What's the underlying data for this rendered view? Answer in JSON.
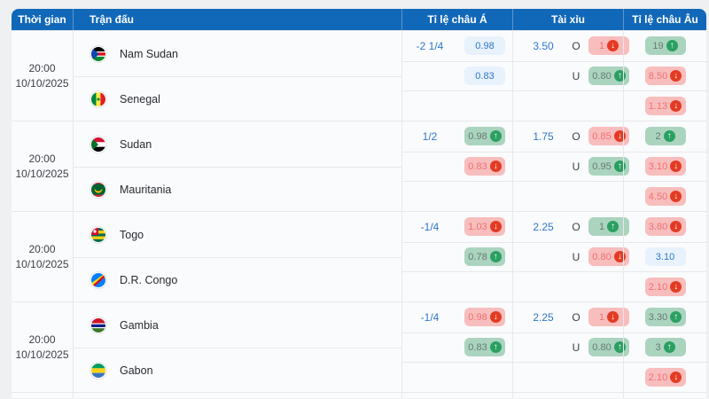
{
  "header": {
    "columns": [
      "Thời gian",
      "Trận đấu",
      "Tỉ lệ châu Á",
      "Tài xỉu",
      "Tỉ lệ châu Âu"
    ]
  },
  "colors": {
    "header_bg": "#1268b8",
    "page_bg": "#eff0f2",
    "accent_blue": "#2d77cc",
    "badge_blue_bg": "#e8f2fc",
    "badge_green_bg": "#abd4bf",
    "badge_red_bg": "#f8bdbd",
    "trend_up_circle": "#2aa061",
    "trend_down_circle": "#e33b23"
  },
  "matches": [
    {
      "time": "20:00",
      "date": "10/10/2025",
      "home": {
        "name": "Nam Sudan",
        "flag": "flag-south-sudan"
      },
      "away": {
        "name": "Senegal",
        "flag": "flag-senegal"
      },
      "asian": {
        "handicap": "-2 1/4",
        "home_odds": {
          "value": "0.98",
          "style": "blue",
          "trend": null
        },
        "away_odds": {
          "value": "0.83",
          "style": "blue",
          "trend": null
        }
      },
      "over_under": {
        "line": "3.50",
        "over_label": "O",
        "under_label": "U",
        "over": {
          "value": "1",
          "style": "red",
          "trend": "down"
        },
        "under": {
          "value": "0.80",
          "style": "green",
          "trend": "up"
        }
      },
      "european": [
        {
          "value": "19",
          "style": "green",
          "trend": "up"
        },
        {
          "value": "8.50",
          "style": "red",
          "trend": "down"
        },
        {
          "value": "1.13",
          "style": "red",
          "trend": "down"
        }
      ]
    },
    {
      "time": "20:00",
      "date": "10/10/2025",
      "home": {
        "name": "Sudan",
        "flag": "flag-sudan"
      },
      "away": {
        "name": "Mauritania",
        "flag": "flag-mauritania"
      },
      "asian": {
        "handicap": "1/2",
        "home_odds": {
          "value": "0.98",
          "style": "green",
          "trend": "up"
        },
        "away_odds": {
          "value": "0.83",
          "style": "red",
          "trend": "down"
        }
      },
      "over_under": {
        "line": "1.75",
        "over_label": "O",
        "under_label": "U",
        "over": {
          "value": "0.85",
          "style": "red",
          "trend": "down"
        },
        "under": {
          "value": "0.95",
          "style": "green",
          "trend": "up"
        }
      },
      "european": [
        {
          "value": "2",
          "style": "green",
          "trend": "up"
        },
        {
          "value": "3.10",
          "style": "red",
          "trend": "down"
        },
        {
          "value": "4.50",
          "style": "red",
          "trend": "down"
        }
      ]
    },
    {
      "time": "20:00",
      "date": "10/10/2025",
      "home": {
        "name": "Togo",
        "flag": "flag-togo"
      },
      "away": {
        "name": "D.R. Congo",
        "flag": "flag-dr-congo"
      },
      "asian": {
        "handicap": "-1/4",
        "home_odds": {
          "value": "1.03",
          "style": "red",
          "trend": "down"
        },
        "away_odds": {
          "value": "0.78",
          "style": "green",
          "trend": "up"
        }
      },
      "over_under": {
        "line": "2.25",
        "over_label": "O",
        "under_label": "U",
        "over": {
          "value": "1",
          "style": "green",
          "trend": "up"
        },
        "under": {
          "value": "0.80",
          "style": "red",
          "trend": "down"
        }
      },
      "european": [
        {
          "value": "3.80",
          "style": "red",
          "trend": "down"
        },
        {
          "value": "3.10",
          "style": "blue",
          "trend": null
        },
        {
          "value": "2.10",
          "style": "red",
          "trend": "down"
        }
      ]
    },
    {
      "time": "20:00",
      "date": "10/10/2025",
      "home": {
        "name": "Gambia",
        "flag": "flag-gambia"
      },
      "away": {
        "name": "Gabon",
        "flag": "flag-gabon"
      },
      "asian": {
        "handicap": "-1/4",
        "home_odds": {
          "value": "0.98",
          "style": "red",
          "trend": "down"
        },
        "away_odds": {
          "value": "0.83",
          "style": "green",
          "trend": "up"
        }
      },
      "over_under": {
        "line": "2.25",
        "over_label": "O",
        "under_label": "U",
        "over": {
          "value": "1",
          "style": "red",
          "trend": "down"
        },
        "under": {
          "value": "0.80",
          "style": "green",
          "trend": "up"
        }
      },
      "european": [
        {
          "value": "3.30",
          "style": "green",
          "trend": "up"
        },
        {
          "value": "3",
          "style": "green",
          "trend": "up"
        },
        {
          "value": "2.10",
          "style": "red",
          "trend": "down"
        }
      ]
    }
  ]
}
